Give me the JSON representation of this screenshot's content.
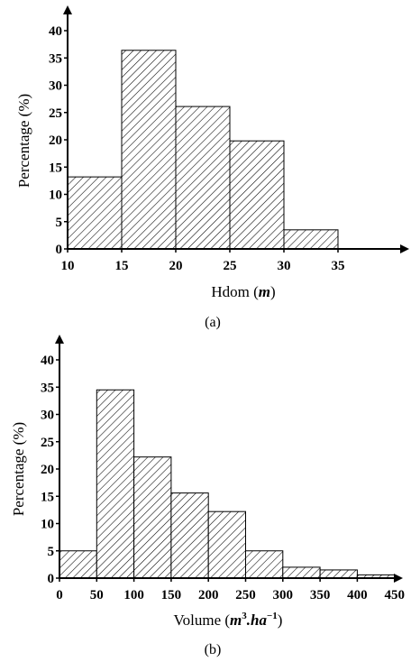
{
  "chart_data": [
    {
      "type": "bar",
      "caption": "(a)",
      "bins": [
        [
          10,
          15
        ],
        [
          15,
          20
        ],
        [
          20,
          25
        ],
        [
          25,
          30
        ],
        [
          30,
          35
        ]
      ],
      "values": [
        13.2,
        36.4,
        26.1,
        19.8,
        3.5
      ],
      "xticks": [
        10,
        15,
        20,
        25,
        30,
        35
      ],
      "yticks": [
        0,
        5,
        10,
        15,
        20,
        25,
        30,
        35,
        40
      ],
      "xlim": [
        10,
        40
      ],
      "ylim": [
        0,
        40
      ],
      "xlabel": "Hdom (m)",
      "xlabel_main": "Hdom (",
      "xlabel_unit": "m",
      "xlabel_close": ")",
      "ylabel": "Percentage (%)",
      "fill": "hatched"
    },
    {
      "type": "bar",
      "caption": "(b)",
      "bins": [
        [
          0,
          50
        ],
        [
          50,
          100
        ],
        [
          100,
          150
        ],
        [
          150,
          200
        ],
        [
          200,
          250
        ],
        [
          250,
          300
        ],
        [
          300,
          350
        ],
        [
          350,
          400
        ],
        [
          400,
          450
        ]
      ],
      "values": [
        5.0,
        34.5,
        22.2,
        15.6,
        12.2,
        5.0,
        2.0,
        1.5,
        0.6
      ],
      "xticks": [
        0,
        50,
        100,
        150,
        200,
        250,
        300,
        350,
        400,
        450
      ],
      "yticks": [
        0,
        5,
        10,
        15,
        20,
        25,
        30,
        35,
        40
      ],
      "xlim": [
        0,
        450
      ],
      "ylim": [
        0,
        40
      ],
      "xlabel": "Volume (m3.ha−1)",
      "xlabel_main": "Volume (",
      "xlabel_unit_a": "m",
      "xlabel_sup_a": "3",
      "xlabel_unit_b": ".ha",
      "xlabel_sup_b": "−1",
      "xlabel_close": ")",
      "ylabel": "Percentage (%)",
      "fill": "hatched"
    }
  ]
}
